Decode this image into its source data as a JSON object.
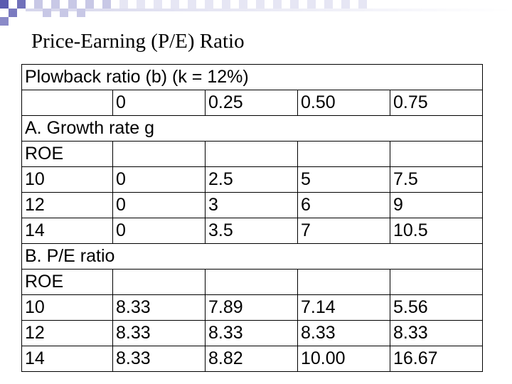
{
  "slide": {
    "title": "Price-Earning (P/E) Ratio"
  },
  "table": {
    "heading": "Plowback ratio (b) (k = 12%)",
    "plowback_values": [
      "0",
      "0.25",
      "0.50",
      "0.75"
    ],
    "section_a": {
      "label": "A. Growth rate g",
      "roe_label": "ROE",
      "rows": [
        {
          "roe": "10",
          "values": [
            "0",
            "2.5",
            "5",
            "7.5"
          ]
        },
        {
          "roe": "12",
          "values": [
            "0",
            "3",
            "6",
            "9"
          ]
        },
        {
          "roe": "14",
          "values": [
            "0",
            "3.5",
            "7",
            "10.5"
          ]
        }
      ]
    },
    "section_b": {
      "label": "B. P/E ratio",
      "roe_label": "ROE",
      "rows": [
        {
          "roe": "10",
          "values": [
            "8.33",
            "7.89",
            "7.14",
            "5.56"
          ]
        },
        {
          "roe": "12",
          "values": [
            "8.33",
            "8.33",
            "8.33",
            "8.33"
          ]
        },
        {
          "roe": "14",
          "values": [
            "8.33",
            "8.82",
            "10.00",
            "16.67"
          ]
        }
      ]
    }
  }
}
